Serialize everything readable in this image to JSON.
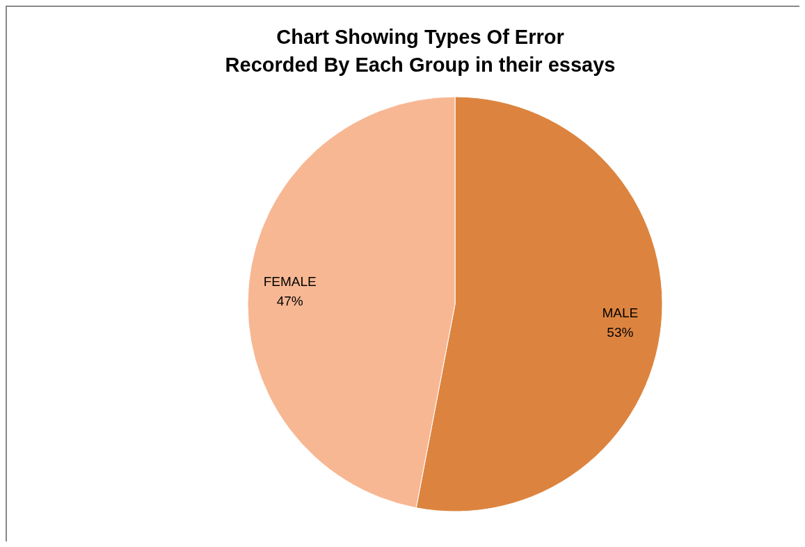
{
  "chart_data": {
    "type": "pie",
    "title": "Chart Showing Types Of Error\nRecorded By Each Group in their essays",
    "categories": [
      "MALE",
      "FEMALE"
    ],
    "values": [
      53,
      47
    ],
    "colors": [
      "#dc843f",
      "#f7b793"
    ],
    "value_labels": [
      "53%",
      "47%"
    ]
  }
}
